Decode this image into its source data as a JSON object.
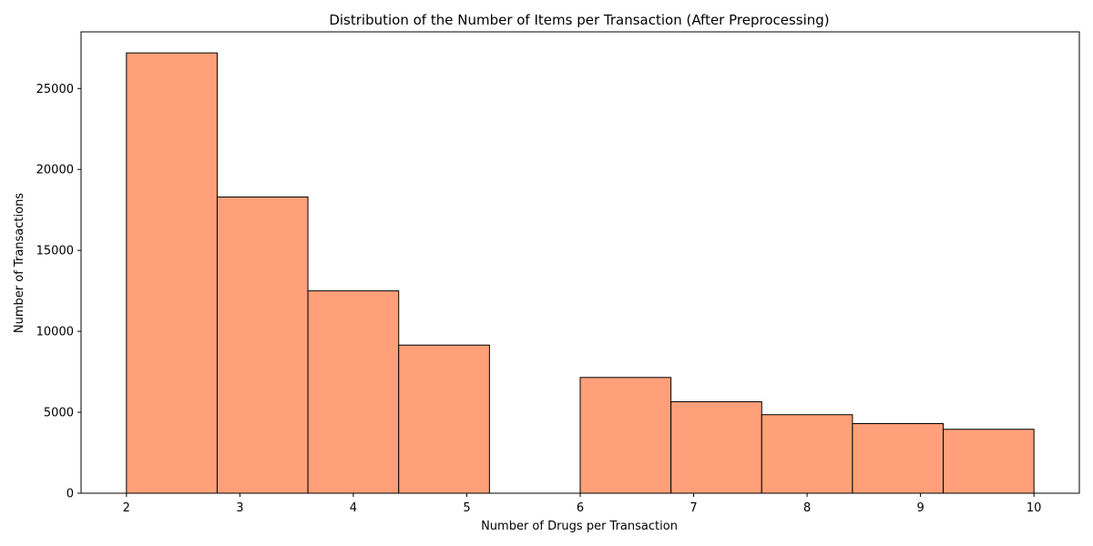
{
  "chart_data": {
    "type": "bar",
    "title": "Distribution of the Number of Items per Transaction (After Preprocessing)",
    "xlabel": "Number of Drugs per Transaction",
    "ylabel": "Number of Transactions",
    "bin_edges": [
      2.0,
      2.8,
      3.6,
      4.4,
      5.2,
      6.0,
      6.8,
      7.6,
      8.4,
      9.2,
      10.0
    ],
    "values": [
      27200,
      18300,
      12500,
      9150,
      0,
      7150,
      5650,
      4850,
      4300,
      3950
    ],
    "xlim": [
      1.6,
      10.4
    ],
    "ylim": [
      0,
      28500
    ],
    "xticks": [
      2,
      3,
      4,
      5,
      6,
      7,
      8,
      9,
      10
    ],
    "yticks": [
      0,
      5000,
      10000,
      15000,
      20000,
      25000
    ],
    "grid": false,
    "bar_color": "#ffa07a",
    "edge_color": "#000000"
  }
}
